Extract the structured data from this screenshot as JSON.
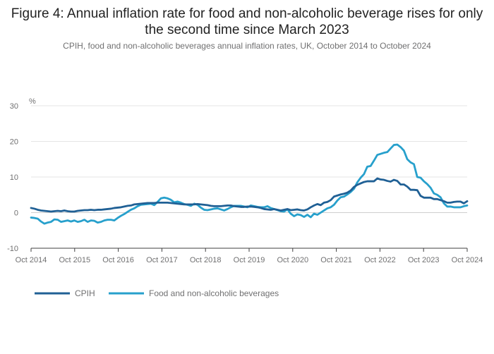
{
  "title": "Figure 4: Annual inflation rate for food and non-alcoholic beverage rises for only the second time since March 2023",
  "subtitle": "CPIH, food and non-alcoholic beverages annual inflation rates, UK, October 2014 to October 2024",
  "chart_data": {
    "type": "line",
    "title": "Figure 4: Annual inflation rate for food and non-alcoholic beverage rises for only the second time since March 2023",
    "ylabel": "%",
    "xlabel": "",
    "ylim": [
      -10,
      30
    ],
    "yticks": [
      -10,
      0,
      10,
      20,
      30
    ],
    "xticks": [
      "Oct 2014",
      "Oct 2015",
      "Oct 2016",
      "Oct 2017",
      "Oct 2018",
      "Oct 2019",
      "Oct 2020",
      "Oct 2021",
      "Oct 2022",
      "Oct 2023",
      "Oct 2024"
    ],
    "x_start": "Oct 2014",
    "x_end": "Oct 2024",
    "grid": true,
    "legend_position": "bottom-left",
    "series": [
      {
        "name": "CPIH",
        "color": "#206095",
        "values": [
          1.3,
          1.1,
          0.8,
          0.6,
          0.5,
          0.4,
          0.3,
          0.4,
          0.5,
          0.4,
          0.6,
          0.4,
          0.3,
          0.3,
          0.5,
          0.6,
          0.7,
          0.7,
          0.8,
          0.7,
          0.8,
          0.8,
          0.9,
          1.0,
          1.1,
          1.3,
          1.4,
          1.5,
          1.7,
          1.9,
          2.0,
          2.3,
          2.4,
          2.5,
          2.6,
          2.7,
          2.7,
          2.7,
          2.8,
          2.8,
          2.8,
          2.8,
          2.7,
          2.6,
          2.5,
          2.4,
          2.3,
          2.3,
          2.3,
          2.3,
          2.4,
          2.3,
          2.2,
          2.1,
          1.9,
          1.8,
          1.8,
          1.8,
          1.9,
          2.0,
          2.0,
          1.8,
          1.7,
          1.6,
          1.6,
          1.7,
          1.7,
          1.6,
          1.5,
          1.3,
          1.0,
          0.9,
          0.8,
          1.0,
          0.8,
          0.6,
          0.8,
          1.0,
          0.7,
          0.8,
          0.9,
          0.7,
          0.6,
          0.9,
          1.5,
          2.0,
          2.4,
          2.1,
          2.8,
          3.0,
          3.5,
          4.5,
          4.8,
          5.1,
          5.3,
          5.6,
          6.2,
          7.2,
          7.8,
          8.2,
          8.6,
          8.8,
          8.8,
          8.8,
          9.6,
          9.3,
          9.2,
          8.9,
          8.7,
          9.2,
          8.9,
          7.9,
          7.9,
          7.3,
          6.4,
          6.4,
          6.3,
          4.7,
          4.2,
          4.2,
          4.2,
          3.8,
          3.8,
          3.5,
          3.2,
          2.8,
          2.8,
          3.0,
          3.1,
          3.1,
          2.6,
          3.2
        ]
      },
      {
        "name": "Food and non-alcoholic beverages",
        "color": "#27a0cc",
        "values": [
          -1.4,
          -1.5,
          -1.7,
          -2.5,
          -3.1,
          -2.8,
          -2.6,
          -1.9,
          -2.0,
          -2.6,
          -2.4,
          -2.2,
          -2.5,
          -2.2,
          -2.6,
          -2.4,
          -2.0,
          -2.6,
          -2.2,
          -2.3,
          -2.8,
          -2.6,
          -2.2,
          -2.0,
          -2.0,
          -2.2,
          -1.5,
          -0.9,
          -0.4,
          0.2,
          0.8,
          1.2,
          1.8,
          2.2,
          2.3,
          2.4,
          2.5,
          2.1,
          3.0,
          4.0,
          4.2,
          4.0,
          3.6,
          2.9,
          3.1,
          2.8,
          2.4,
          2.2,
          1.9,
          2.5,
          2.2,
          1.4,
          0.8,
          0.7,
          0.9,
          1.1,
          1.2,
          0.9,
          0.6,
          1.0,
          1.5,
          1.9,
          1.9,
          1.9,
          1.7,
          1.5,
          2.0,
          1.8,
          1.6,
          1.5,
          1.5,
          1.8,
          1.3,
          1.0,
          0.7,
          0.4,
          0.3,
          0.9,
          -0.3,
          -1.0,
          -0.5,
          -0.7,
          -1.2,
          -0.6,
          -1.3,
          -0.3,
          -0.6,
          0.0,
          0.6,
          1.2,
          1.5,
          2.2,
          3.4,
          4.3,
          4.5,
          5.1,
          5.8,
          6.7,
          8.5,
          9.8,
          10.8,
          12.9,
          13.1,
          14.6,
          16.2,
          16.5,
          16.8,
          17.0,
          18.0,
          19.0,
          19.1,
          18.4,
          17.4,
          15.0,
          14.1,
          13.6,
          10.0,
          9.8,
          8.8,
          8.0,
          7.0,
          5.4,
          5.0,
          4.3,
          2.6,
          1.7,
          1.7,
          1.5,
          1.5,
          1.5,
          1.8,
          2.0
        ]
      }
    ]
  }
}
